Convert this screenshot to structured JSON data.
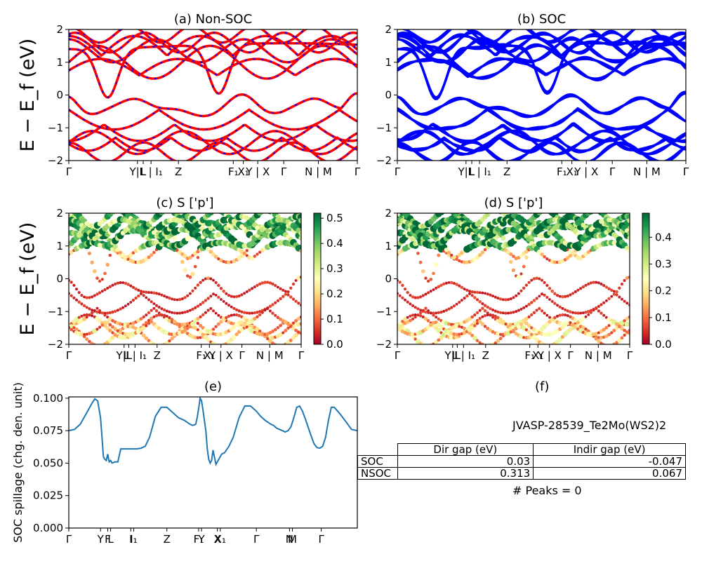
{
  "colors": {
    "nonsoc_red": "#ff0000",
    "nonsoc_blue_dash": "#0000ff",
    "soc_blue": "#0000ff",
    "spillage_line": "#1f77b4",
    "colormap": "RdYlGn"
  },
  "chart_data": [
    {
      "id": "a",
      "type": "line",
      "title": "(a) Non-SOC",
      "ylabel": "E − E_f (eV)",
      "ylim": [
        -2,
        2
      ],
      "yticks": [
        "2",
        "1",
        "0",
        "−1",
        "−2"
      ],
      "kpath_ticks": [
        {
          "pos": 0.0,
          "label": "Γ"
        },
        {
          "pos": 0.238,
          "label": "Y|L"
        },
        {
          "pos": 0.258,
          "label": "L"
        },
        {
          "pos": 0.285,
          "label": "L | I₁"
        },
        {
          "pos": 0.38,
          "label": "Z"
        },
        {
          "pos": 0.57,
          "label": "F₁"
        },
        {
          "pos": 0.605,
          "label": "X₁"
        },
        {
          "pos": 0.655,
          "label": "Y | X"
        },
        {
          "pos": 0.745,
          "label": "Γ"
        },
        {
          "pos": 0.865,
          "label": "N | M"
        },
        {
          "pos": 1.0,
          "label": "Γ"
        }
      ],
      "series": [
        {
          "style": "red solid, blue dashed overlay"
        }
      ]
    },
    {
      "id": "b",
      "type": "line",
      "title": "(b) SOC",
      "ylim": [
        -2,
        2
      ],
      "yticks": [
        "2",
        "1",
        "0",
        "−1",
        "−2"
      ],
      "kpath_ticks": [
        {
          "pos": 0.0,
          "label": "Γ"
        },
        {
          "pos": 0.238,
          "label": "Y|L"
        },
        {
          "pos": 0.258,
          "label": "L"
        },
        {
          "pos": 0.285,
          "label": "L | I₁"
        },
        {
          "pos": 0.38,
          "label": "Z"
        },
        {
          "pos": 0.57,
          "label": "F₁"
        },
        {
          "pos": 0.605,
          "label": "X₁"
        },
        {
          "pos": 0.655,
          "label": "Y | X"
        },
        {
          "pos": 0.745,
          "label": "Γ"
        },
        {
          "pos": 0.865,
          "label": "N | M"
        },
        {
          "pos": 1.0,
          "label": "Γ"
        }
      ]
    },
    {
      "id": "c",
      "type": "scatter",
      "title": "(c)  S ['p']",
      "ylabel": "E − E_f (eV)",
      "ylim": [
        -2,
        2
      ],
      "yticks": [
        "2",
        "1",
        "0",
        "−1",
        "−2"
      ],
      "colorbar": {
        "min": 0.0,
        "max": 0.52,
        "ticks": [
          "0.0",
          "0.1",
          "0.2",
          "0.3",
          "0.4",
          "0.5"
        ],
        "tick_values": [
          0.0,
          0.1,
          0.2,
          0.3,
          0.4,
          0.5
        ]
      },
      "kpath_ticks": [
        {
          "pos": 0.0,
          "label": "Γ"
        },
        {
          "pos": 0.238,
          "label": "Y|L"
        },
        {
          "pos": 0.258,
          "label": "L"
        },
        {
          "pos": 0.285,
          "label": "L | I₁"
        },
        {
          "pos": 0.38,
          "label": "Z"
        },
        {
          "pos": 0.57,
          "label": "F₁"
        },
        {
          "pos": 0.605,
          "label": "X₁"
        },
        {
          "pos": 0.655,
          "label": "Y | X"
        },
        {
          "pos": 0.745,
          "label": "Γ"
        },
        {
          "pos": 0.865,
          "label": "N | M"
        },
        {
          "pos": 1.0,
          "label": "Γ"
        }
      ]
    },
    {
      "id": "d",
      "type": "scatter",
      "title": "(d) S ['p']",
      "ylim": [
        -2,
        2
      ],
      "yticks": [
        "2",
        "1",
        "0",
        "−1",
        "−2"
      ],
      "colorbar": {
        "min": 0.0,
        "max": 0.49,
        "ticks": [
          "0.0",
          "0.1",
          "0.2",
          "0.3",
          "0.4"
        ],
        "tick_values": [
          0.0,
          0.1,
          0.2,
          0.3,
          0.4
        ]
      },
      "kpath_ticks": [
        {
          "pos": 0.0,
          "label": "Γ"
        },
        {
          "pos": 0.238,
          "label": "Y|L"
        },
        {
          "pos": 0.258,
          "label": "L"
        },
        {
          "pos": 0.285,
          "label": "L | I₁"
        },
        {
          "pos": 0.38,
          "label": "Z"
        },
        {
          "pos": 0.57,
          "label": "F₁"
        },
        {
          "pos": 0.605,
          "label": "X₁"
        },
        {
          "pos": 0.655,
          "label": "Y | X"
        },
        {
          "pos": 0.745,
          "label": "Γ"
        },
        {
          "pos": 0.865,
          "label": "N | M"
        },
        {
          "pos": 1.0,
          "label": "Γ"
        }
      ]
    },
    {
      "id": "e",
      "type": "line",
      "title": "(e)",
      "ylabel": "SOC spillage (chg. den. unit)",
      "ylim": [
        0.0,
        0.101
      ],
      "yticks": [
        "0.100",
        "0.075",
        "0.050",
        "0.025",
        "0.000"
      ],
      "ytick_values": [
        0.1,
        0.075,
        0.05,
        0.025,
        0.0
      ],
      "kpath_ticks": [
        {
          "pos": 0.0,
          "label": "Γ"
        },
        {
          "pos": 0.11,
          "label": "Y"
        },
        {
          "pos": 0.135,
          "label": "F"
        },
        {
          "pos": 0.145,
          "label": "L"
        },
        {
          "pos": 0.215,
          "label": "I"
        },
        {
          "pos": 0.225,
          "label": "I₁"
        },
        {
          "pos": 0.34,
          "label": "Z"
        },
        {
          "pos": 0.45,
          "label": "F₁"
        },
        {
          "pos": 0.46,
          "label": "Y"
        },
        {
          "pos": 0.515,
          "label": "X"
        },
        {
          "pos": 0.525,
          "label": "X₁"
        },
        {
          "pos": 0.65,
          "label": "Γ"
        },
        {
          "pos": 0.765,
          "label": "N"
        },
        {
          "pos": 0.775,
          "label": "M"
        },
        {
          "pos": 0.875,
          "label": "Γ"
        }
      ],
      "x": [
        0,
        0.02,
        0.04,
        0.06,
        0.08,
        0.09,
        0.1,
        0.11,
        0.115,
        0.12,
        0.122,
        0.125,
        0.13,
        0.135,
        0.14,
        0.145,
        0.15,
        0.16,
        0.17,
        0.18,
        0.19,
        0.2,
        0.21,
        0.22,
        0.235,
        0.25,
        0.265,
        0.28,
        0.3,
        0.32,
        0.34,
        0.36,
        0.38,
        0.4,
        0.42,
        0.43,
        0.44,
        0.445,
        0.45,
        0.455,
        0.46,
        0.465,
        0.475,
        0.48,
        0.485,
        0.49,
        0.495,
        0.5,
        0.51,
        0.52,
        0.53,
        0.54,
        0.555,
        0.57,
        0.59,
        0.61,
        0.63,
        0.65,
        0.665,
        0.68,
        0.7,
        0.71,
        0.72,
        0.73,
        0.74,
        0.75,
        0.76,
        0.77,
        0.78,
        0.79,
        0.8,
        0.81,
        0.82,
        0.84,
        0.85,
        0.86,
        0.87,
        0.88,
        0.89,
        0.9,
        0.91,
        0.92,
        0.94,
        0.96,
        0.98,
        1.0
      ],
      "values": [
        0.075,
        0.076,
        0.08,
        0.088,
        0.096,
        0.0995,
        0.098,
        0.085,
        0.07,
        0.055,
        0.054,
        0.053,
        0.052,
        0.057,
        0.051,
        0.052,
        0.05,
        0.051,
        0.051,
        0.061,
        0.061,
        0.061,
        0.061,
        0.061,
        0.061,
        0.0615,
        0.063,
        0.07,
        0.086,
        0.093,
        0.093,
        0.089,
        0.085,
        0.083,
        0.08,
        0.079,
        0.08,
        0.085,
        0.092,
        0.1,
        0.098,
        0.091,
        0.075,
        0.061,
        0.053,
        0.05,
        0.052,
        0.06,
        0.049,
        0.053,
        0.057,
        0.058,
        0.063,
        0.07,
        0.085,
        0.094,
        0.094,
        0.09,
        0.086,
        0.083,
        0.08,
        0.079,
        0.077,
        0.076,
        0.075,
        0.074,
        0.075,
        0.078,
        0.085,
        0.093,
        0.094,
        0.09,
        0.084,
        0.071,
        0.065,
        0.062,
        0.0615,
        0.063,
        0.07,
        0.083,
        0.093,
        0.093,
        0.088,
        0.082,
        0.076,
        0.075
      ]
    }
  ],
  "panel_f": {
    "title": "(f)",
    "material": "JVASP-28539_Te2Mo(WS2)2",
    "table": {
      "headers": [
        "Dir gap (eV)",
        "Indir gap (eV)"
      ],
      "rows": [
        {
          "label": "SOC",
          "dir": "0.03",
          "indir": "-0.047"
        },
        {
          "label": "NSOC",
          "dir": "0.313",
          "indir": "0.067"
        }
      ]
    },
    "peaks": "# Peaks = 0"
  }
}
